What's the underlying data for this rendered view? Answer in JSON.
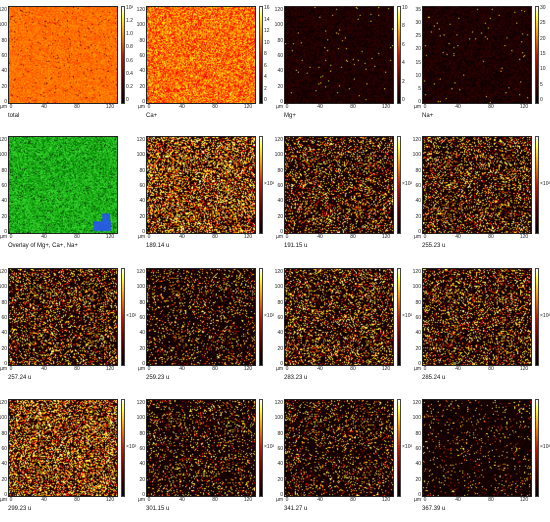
{
  "axis": {
    "unit": "µm",
    "x_ticks": [
      "0",
      "40",
      "80",
      "120"
    ],
    "y_ticks": [
      "120",
      "100",
      "80",
      "60",
      "40",
      "20",
      "0"
    ],
    "y_ticks_small": [
      "35",
      "30",
      "25",
      "20",
      "15",
      "10",
      "5",
      "0"
    ]
  },
  "panels": [
    {
      "label": "total",
      "colormap": "hot",
      "bar_ticks": [
        "10²",
        "1.2",
        "1.0",
        "0.8",
        "0.6",
        "0.4",
        "0.2",
        "0"
      ],
      "intensity": "high"
    },
    {
      "label": "Ca+",
      "colormap": "hot",
      "bar_ticks": [
        "16",
        "14",
        "12",
        "10",
        "8",
        "6",
        "4",
        "2",
        "0"
      ],
      "intensity": "medium"
    },
    {
      "label": "Mg+",
      "colormap": "hot",
      "bar_ticks": [
        "10",
        "8",
        "6",
        "4",
        "2",
        "0"
      ],
      "intensity": "low"
    },
    {
      "label": "Na+",
      "colormap": "hot",
      "bar_ticks": [
        "30",
        "25",
        "20",
        "15",
        "10",
        "5",
        "0"
      ],
      "intensity": "low"
    },
    {
      "label": "Overlay of Mg+, Ca+, Na+",
      "colormap": "overlay",
      "bar_ticks": [],
      "intensity": "overlay"
    },
    {
      "label": "189.14 u",
      "colormap": "hot",
      "bar_ticks": [
        "×10²"
      ],
      "intensity": "sparse-high"
    },
    {
      "label": "191.15 u",
      "colormap": "hot",
      "bar_ticks": [
        "×10²"
      ],
      "intensity": "sparse"
    },
    {
      "label": "255.23 u",
      "colormap": "hot",
      "bar_ticks": [
        "×10²"
      ],
      "intensity": "sparse"
    },
    {
      "label": "257.24 u",
      "colormap": "hot",
      "bar_ticks": [
        "×10²"
      ],
      "intensity": "sparse"
    },
    {
      "label": "259.23 u",
      "colormap": "hot",
      "bar_ticks": [
        "×10²"
      ],
      "intensity": "sparse-low"
    },
    {
      "label": "283.23 u",
      "colormap": "hot",
      "bar_ticks": [
        "×10²"
      ],
      "intensity": "sparse"
    },
    {
      "label": "285.24 u",
      "colormap": "hot",
      "bar_ticks": [
        "×10²"
      ],
      "intensity": "sparse"
    },
    {
      "label": "299.23 u",
      "colormap": "hot",
      "bar_ticks": [
        "×10²"
      ],
      "intensity": "sparse-high"
    },
    {
      "label": "301.15 u",
      "colormap": "hot",
      "bar_ticks": [
        "×10²"
      ],
      "intensity": "sparse-low"
    },
    {
      "label": "341.27 u",
      "colormap": "hot",
      "bar_ticks": [
        "×10²"
      ],
      "intensity": "sparse-low"
    },
    {
      "label": "367.39 u",
      "colormap": "hot",
      "bar_ticks": [
        "×10²"
      ],
      "intensity": "very-sparse"
    }
  ]
}
